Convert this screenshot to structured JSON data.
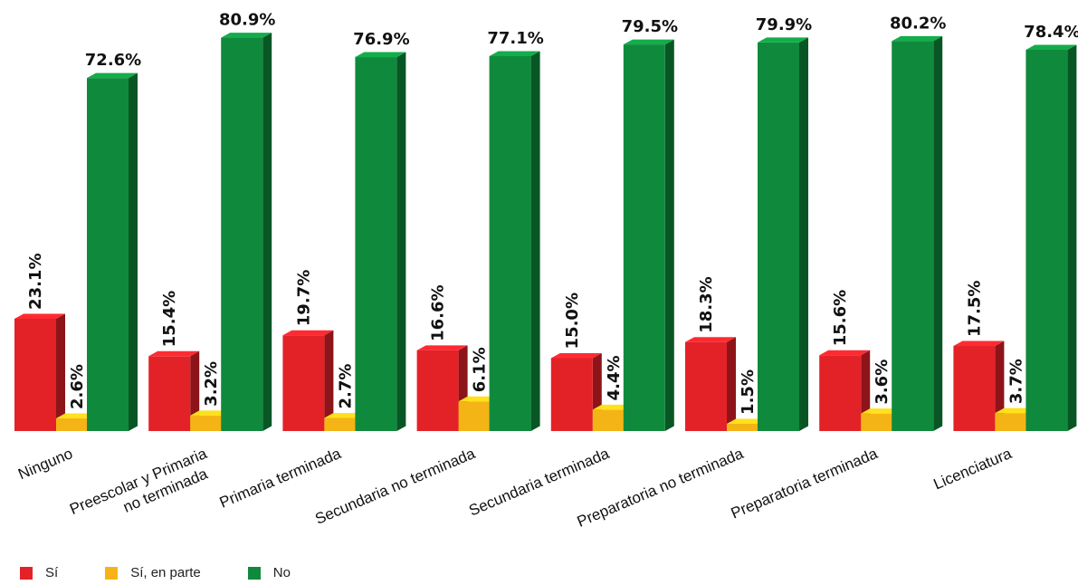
{
  "chart_data": {
    "type": "bar",
    "title": "",
    "xlabel": "",
    "ylabel": "",
    "ylim": [
      0,
      85
    ],
    "grid": false,
    "legend_position": "bottom-left",
    "value_suffix": "%",
    "categories": [
      "Ninguno",
      "Preescolar y Primaria\nno terminada",
      "Primaria terminada",
      "Secundaria no terminada",
      "Secundaria terminada",
      "Preparatoria no terminada",
      "Preparatoria terminada",
      "Licenciatura"
    ],
    "series": [
      {
        "name": "Sí",
        "color": "#e32228",
        "values": [
          23.1,
          15.4,
          19.7,
          16.6,
          15.0,
          18.3,
          15.6,
          17.5
        ]
      },
      {
        "name": "Sí, en parte",
        "color": "#f5b416",
        "values": [
          2.6,
          3.2,
          2.7,
          6.1,
          4.4,
          1.5,
          3.6,
          3.7
        ]
      },
      {
        "name": "No",
        "color": "#0f8a3c",
        "values": [
          72.6,
          80.9,
          76.9,
          77.1,
          79.5,
          79.9,
          80.2,
          78.4
        ]
      }
    ]
  }
}
